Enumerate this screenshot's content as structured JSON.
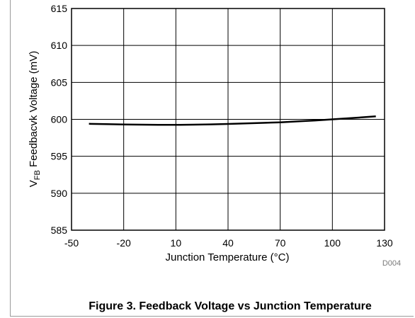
{
  "chart_data": {
    "type": "line",
    "xlabel": "Junction Temperature (°C)",
    "ylabel_main": "V",
    "ylabel_sub": "FB",
    "ylabel_rest": " Feedbacvk Voltage (mV)",
    "xlim": [
      -50,
      130
    ],
    "ylim": [
      585,
      615
    ],
    "xticks": [
      "-50",
      "-20",
      "10",
      "40",
      "70",
      "100",
      "130"
    ],
    "yticks": [
      "585",
      "590",
      "595",
      "600",
      "605",
      "610",
      "615"
    ],
    "grid": true,
    "series": [
      {
        "x": [
          -40,
          -30,
          -20,
          -10,
          0,
          10,
          20,
          30,
          40,
          50,
          60,
          70,
          80,
          90,
          100,
          110,
          125
        ],
        "y": [
          599.4,
          599.35,
          599.3,
          599.28,
          599.25,
          599.25,
          599.28,
          599.32,
          599.38,
          599.45,
          599.52,
          599.6,
          599.72,
          599.85,
          600.0,
          600.15,
          600.4
        ]
      }
    ],
    "figure_code": "D004",
    "caption": "Figure 3. Feedback Voltage vs Junction Temperature"
  }
}
